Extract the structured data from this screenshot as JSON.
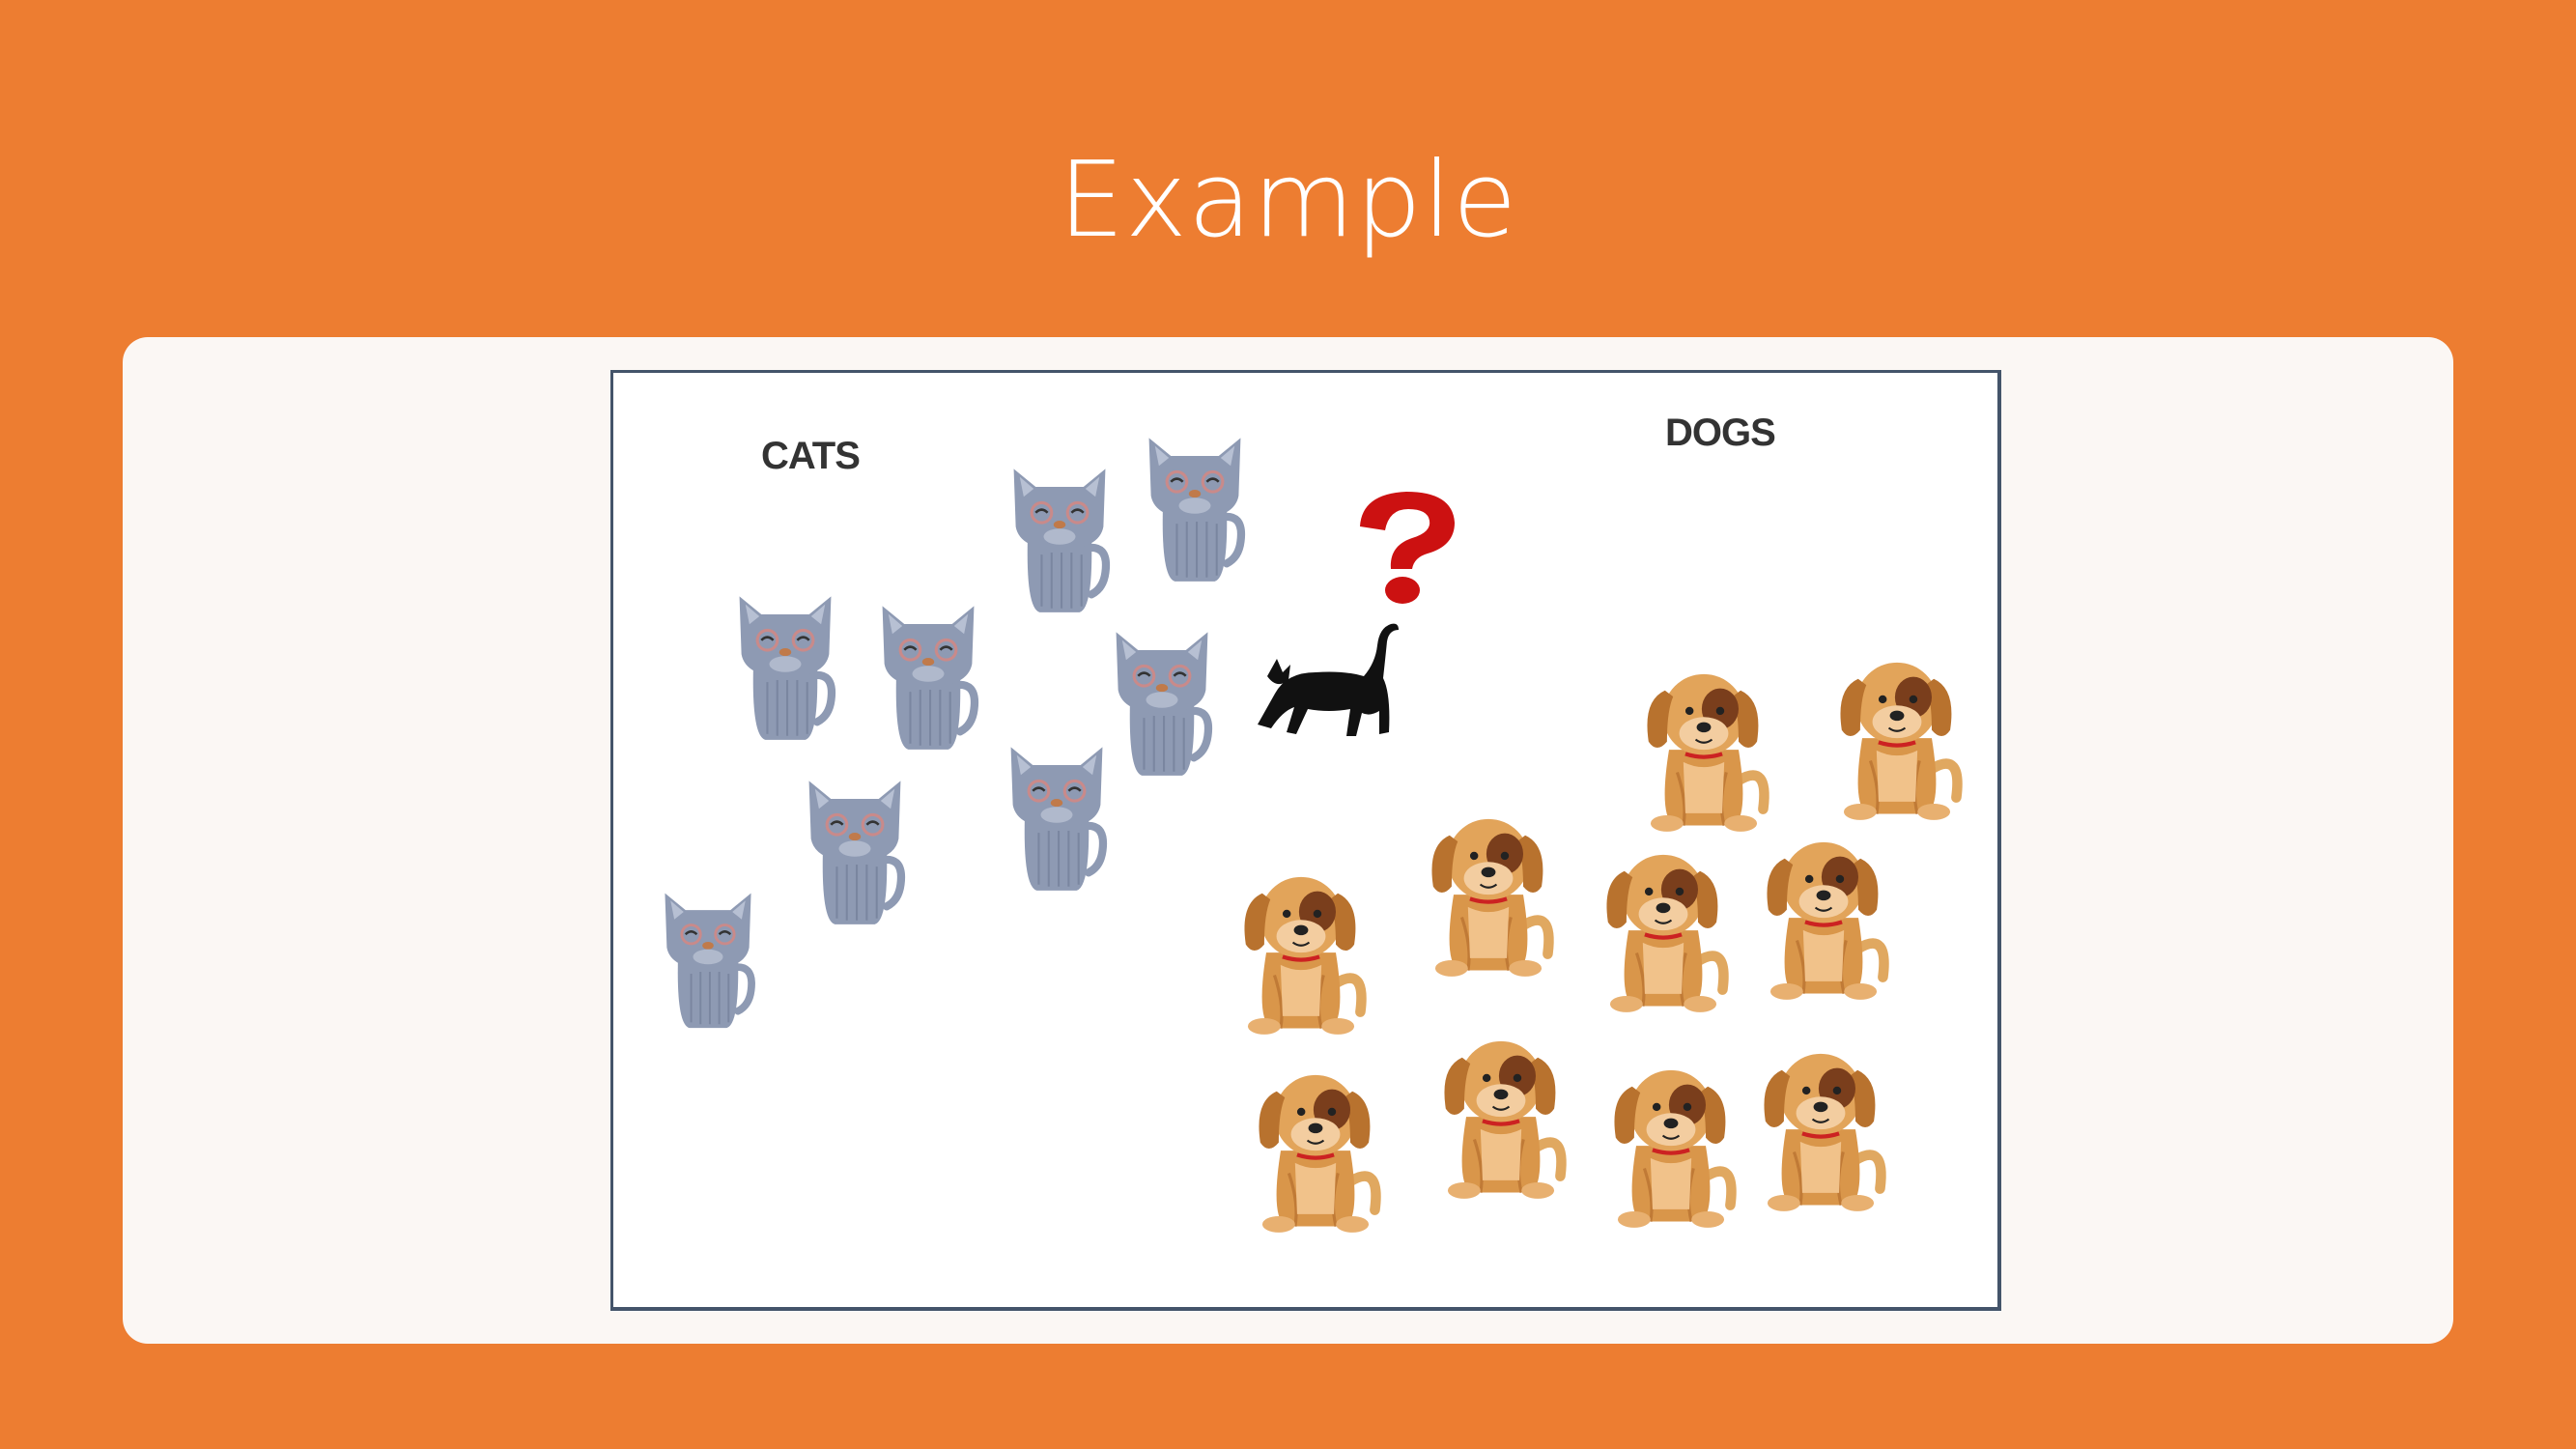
{
  "slide": {
    "title": "Example",
    "colors": {
      "background": "#ED7D31",
      "card": "#FBF7F4",
      "frame_border": "#44546A",
      "cat": "#8E9AB3",
      "dog": "#D9964A",
      "question_mark": "#CC1111",
      "unknown_animal": "#111111"
    }
  },
  "illustration": {
    "cats_label": "CATS",
    "dogs_label": "DOGS",
    "cats_count": 9,
    "dogs_count": 10,
    "unknown_icon": "black-cat-silhouette",
    "query_icon": "red-question-mark"
  }
}
